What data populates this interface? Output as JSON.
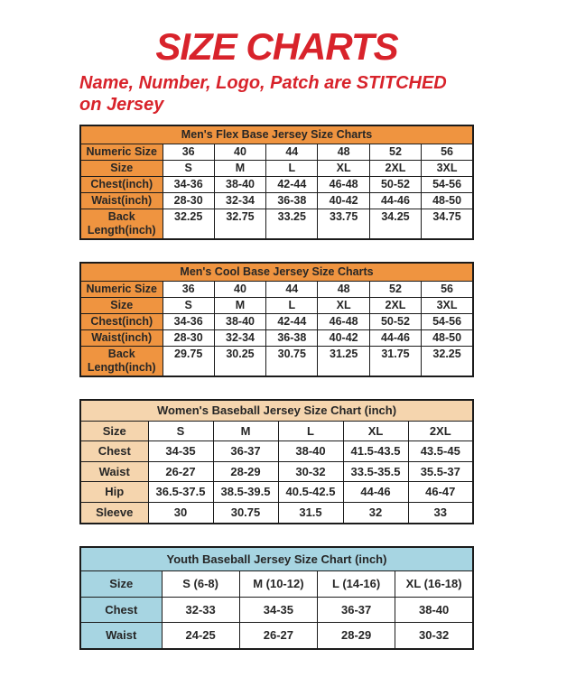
{
  "page": {
    "title": "SIZE CHARTS",
    "subtitle_line1": "Name, Number, Logo, Patch are STITCHED",
    "subtitle_line2": "on Jersey"
  },
  "colors": {
    "accent-red": "#D8232B",
    "table-orange": "#EF9440",
    "table-peach": "#F5D5AE",
    "table-blue": "#A7D5E2"
  },
  "tables": [
    {
      "title": "Men's Flex Base Jersey Size Charts",
      "theme": "orange",
      "rows": [
        {
          "label": "Numeric Size",
          "values": [
            "36",
            "40",
            "44",
            "48",
            "52",
            "56"
          ]
        },
        {
          "label": "Size",
          "values": [
            "S",
            "M",
            "L",
            "XL",
            "2XL",
            "3XL"
          ]
        },
        {
          "label": "Chest(inch)",
          "values": [
            "34-36",
            "38-40",
            "42-44",
            "46-48",
            "50-52",
            "54-56"
          ]
        },
        {
          "label": "Waist(inch)",
          "values": [
            "28-30",
            "32-34",
            "36-38",
            "40-42",
            "44-46",
            "48-50"
          ]
        },
        {
          "label": "Back Length(inch)",
          "values": [
            "32.25",
            "32.75",
            "33.25",
            "33.75",
            "34.25",
            "34.75"
          ]
        }
      ]
    },
    {
      "title": "Men's Cool Base Jersey Size Charts",
      "theme": "orange",
      "rows": [
        {
          "label": "Numeric Size",
          "values": [
            "36",
            "40",
            "44",
            "48",
            "52",
            "56"
          ]
        },
        {
          "label": "Size",
          "values": [
            "S",
            "M",
            "L",
            "XL",
            "2XL",
            "3XL"
          ]
        },
        {
          "label": "Chest(inch)",
          "values": [
            "34-36",
            "38-40",
            "42-44",
            "46-48",
            "50-52",
            "54-56"
          ]
        },
        {
          "label": "Waist(inch)",
          "values": [
            "28-30",
            "32-34",
            "36-38",
            "40-42",
            "44-46",
            "48-50"
          ]
        },
        {
          "label": "Back Length(inch)",
          "values": [
            "29.75",
            "30.25",
            "30.75",
            "31.25",
            "31.75",
            "32.25"
          ]
        }
      ]
    },
    {
      "title": "Women's Baseball Jersey Size Chart (inch)",
      "theme": "peach",
      "rows": [
        {
          "label": "Size",
          "values": [
            "S",
            "M",
            "L",
            "XL",
            "2XL"
          ]
        },
        {
          "label": "Chest",
          "values": [
            "34-35",
            "36-37",
            "38-40",
            "41.5-43.5",
            "43.5-45"
          ]
        },
        {
          "label": "Waist",
          "values": [
            "26-27",
            "28-29",
            "30-32",
            "33.5-35.5",
            "35.5-37"
          ]
        },
        {
          "label": "Hip",
          "values": [
            "36.5-37.5",
            "38.5-39.5",
            "40.5-42.5",
            "44-46",
            "46-47"
          ]
        },
        {
          "label": "Sleeve",
          "values": [
            "30",
            "30.75",
            "31.5",
            "32",
            "33"
          ]
        }
      ]
    },
    {
      "title": "Youth Baseball Jersey Size Chart (inch)",
      "theme": "blue",
      "rows": [
        {
          "label": "Size",
          "values": [
            "S (6-8)",
            "M (10-12)",
            "L (14-16)",
            "XL (16-18)"
          ]
        },
        {
          "label": "Chest",
          "values": [
            "32-33",
            "34-35",
            "36-37",
            "38-40"
          ]
        },
        {
          "label": "Waist",
          "values": [
            "24-25",
            "26-27",
            "28-29",
            "30-32"
          ]
        }
      ]
    }
  ]
}
